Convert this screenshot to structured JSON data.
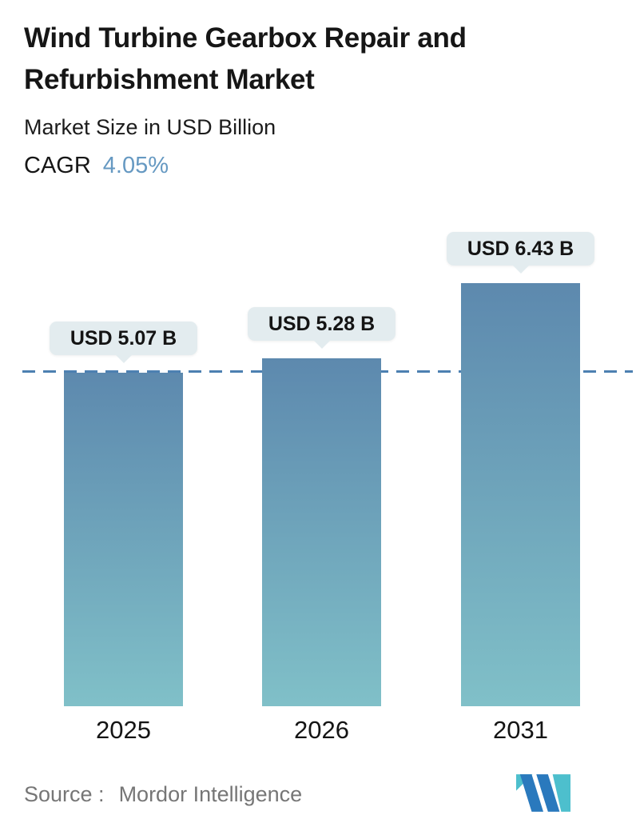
{
  "header": {
    "title": "Wind Turbine Gearbox Repair and Refurbishment Market",
    "subtitle": "Market Size in USD Billion",
    "cagr_label": "CAGR",
    "cagr_value": "4.05%"
  },
  "chart_data": {
    "type": "bar",
    "title": "Wind Turbine Gearbox Repair and Refurbishment Market",
    "subtitle": "Market Size in USD Billion",
    "unit": "USD Billion",
    "cagr_percent": 4.05,
    "categories": [
      "2025",
      "2026",
      "2031"
    ],
    "values": [
      5.07,
      5.28,
      6.43
    ],
    "bar_labels": [
      "USD 5.07 B",
      "USD 5.28 B",
      "USD 6.43 B"
    ],
    "reference_line_value": 5.07,
    "xlabel": "",
    "ylabel": "",
    "ylim": [
      0,
      7
    ],
    "grid": false,
    "legend": false,
    "colors": {
      "bar_gradient_top": "#5d89ae",
      "bar_gradient_bottom": "#80c0c8",
      "reference_line": "#4d80b1",
      "tooltip_bg": "#e3ecef",
      "cagr_value": "#6699c2"
    }
  },
  "footer": {
    "source_label": "Source :",
    "source_value": "Mordor Intelligence",
    "logo_name": "mordor-intelligence-logo",
    "logo_colors": {
      "teal": "#4dbfcd",
      "blue": "#2a79bd"
    }
  }
}
